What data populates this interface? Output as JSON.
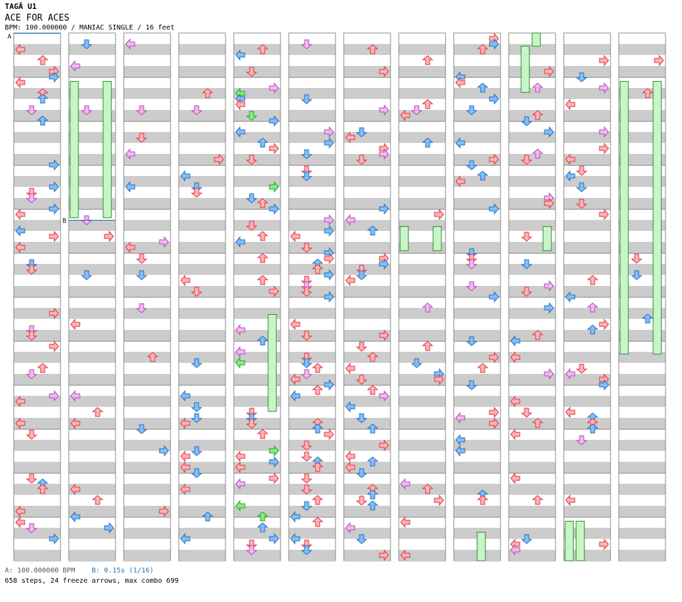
{
  "header": {
    "artist": "TAGÄ U1",
    "title": "ACE FOR ACES",
    "meta": "BPM: 100.000000 / MANIAC SINGLE / 16 feet"
  },
  "chart_data": {
    "type": "step-chart",
    "title": "ACE FOR ACES",
    "columns": 12,
    "measures_per_column": 12,
    "lanes": [
      "left",
      "down",
      "up",
      "right"
    ],
    "bpm_marker": {
      "label": "A",
      "measure": 0
    },
    "stop_marker": {
      "label": "B",
      "measure": 16
    },
    "legend": {
      "a_label": "A: 100.000000 BPM",
      "b_label": "B: 0.15s (1/16)"
    },
    "stats": "658 steps, 24 freeze arrows, max combo 699",
    "colors": {
      "quarter": "#ffb3b3",
      "eighth": "#7fbfff",
      "sixteenth": "#f2b8f2",
      "special": "#7cf27c",
      "freeze": "#c8f5c8",
      "stripe": "#cccccc",
      "measure_line": "#888888"
    }
  }
}
